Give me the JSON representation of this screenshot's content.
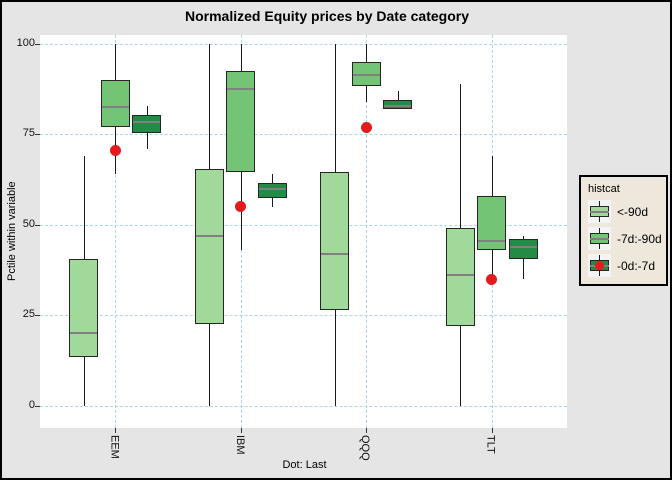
{
  "title": "Normalized Equity prices by Date category",
  "y_axis": {
    "label": "Pctile within variable",
    "ticks": [
      "100",
      "75",
      "50",
      "25",
      "0"
    ]
  },
  "x_axis": {
    "categories": [
      "EEM",
      "IBM",
      "QQQ",
      "TLT"
    ]
  },
  "caption": "Dot: Last",
  "legend": {
    "title": "histcat",
    "items": [
      {
        "label": "<-90d",
        "color": "#A1D99B",
        "dot": false
      },
      {
        "label": "-7d:-90d",
        "color": "#74C476",
        "dot": false
      },
      {
        "label": "-0d:-7d",
        "color": "#238B45",
        "dot": true
      }
    ]
  },
  "colors": {
    "figure_background": "#E5E5E5",
    "panel_background": "#FFFFFF",
    "gridline": "#ADD8E6",
    "box_border": "#262626",
    "median": "#808080",
    "whisker": "#1A1A1A",
    "light_green": "#A1D99B",
    "medium_green": "#74C476",
    "dark_green": "#238B45",
    "dot_red": "#E41A1C",
    "legend_background": "#EDE7DC"
  },
  "chart_data": {
    "type": "boxplot",
    "title": "Normalized Equity prices by Date category",
    "xlabel": "",
    "ylabel": "Pctile within variable",
    "caption": "Dot: Last",
    "categories": [
      "EEM",
      "IBM",
      "QQQ",
      "TLT"
    ],
    "y_ticks": [
      0,
      25,
      50,
      75,
      100
    ],
    "ylim_data": [
      0,
      100
    ],
    "panel_value_range": [
      -6.2,
      102.5
    ],
    "grid": "dashed-lightblue",
    "legend_position": "right",
    "legend_title": "histcat",
    "series": [
      {
        "name": "<-90d",
        "color": "#A1D99B",
        "boxes": [
          {
            "category": "EEM",
            "lo": 0,
            "q1": 13.5,
            "med": 20,
            "q3": 40.5,
            "hi": 69
          },
          {
            "category": "IBM",
            "lo": 0,
            "q1": 22.5,
            "med": 47,
            "q3": 65.5,
            "hi": 100
          },
          {
            "category": "QQQ",
            "lo": 0,
            "q1": 26.5,
            "med": 42,
            "q3": 64.5,
            "hi": 100
          },
          {
            "category": "TLT",
            "lo": 0,
            "q1": 22,
            "med": 36,
            "q3": 49,
            "hi": 89
          }
        ]
      },
      {
        "name": "-7d:-90d",
        "color": "#74C476",
        "boxes": [
          {
            "category": "EEM",
            "lo": 64,
            "q1": 77,
            "med": 82.5,
            "q3": 90,
            "hi": 100
          },
          {
            "category": "IBM",
            "lo": 43,
            "q1": 64.5,
            "med": 87.5,
            "q3": 92.5,
            "hi": 100
          },
          {
            "category": "QQQ",
            "lo": 84,
            "q1": 88.5,
            "med": 91.5,
            "q3": 95,
            "hi": 100
          },
          {
            "category": "TLT",
            "lo": 35,
            "q1": 43,
            "med": 45.5,
            "q3": 58,
            "hi": 69
          }
        ]
      },
      {
        "name": "-0d:-7d",
        "color": "#238B45",
        "boxes": [
          {
            "category": "EEM",
            "lo": 71,
            "q1": 75.5,
            "med": 78.5,
            "q3": 80.5,
            "hi": 83
          },
          {
            "category": "IBM",
            "lo": 55,
            "q1": 57.5,
            "med": 60,
            "q3": 61.5,
            "hi": 64
          },
          {
            "category": "QQQ",
            "lo": 82,
            "q1": 82,
            "med": 83,
            "q3": 84.5,
            "hi": 87
          },
          {
            "category": "TLT",
            "lo": 35,
            "q1": 40.5,
            "med": 44,
            "q3": 46,
            "hi": 47
          }
        ]
      }
    ],
    "dots": {
      "name": "Last",
      "color": "#E41A1C",
      "values": [
        70.5,
        55,
        77,
        35
      ]
    }
  }
}
